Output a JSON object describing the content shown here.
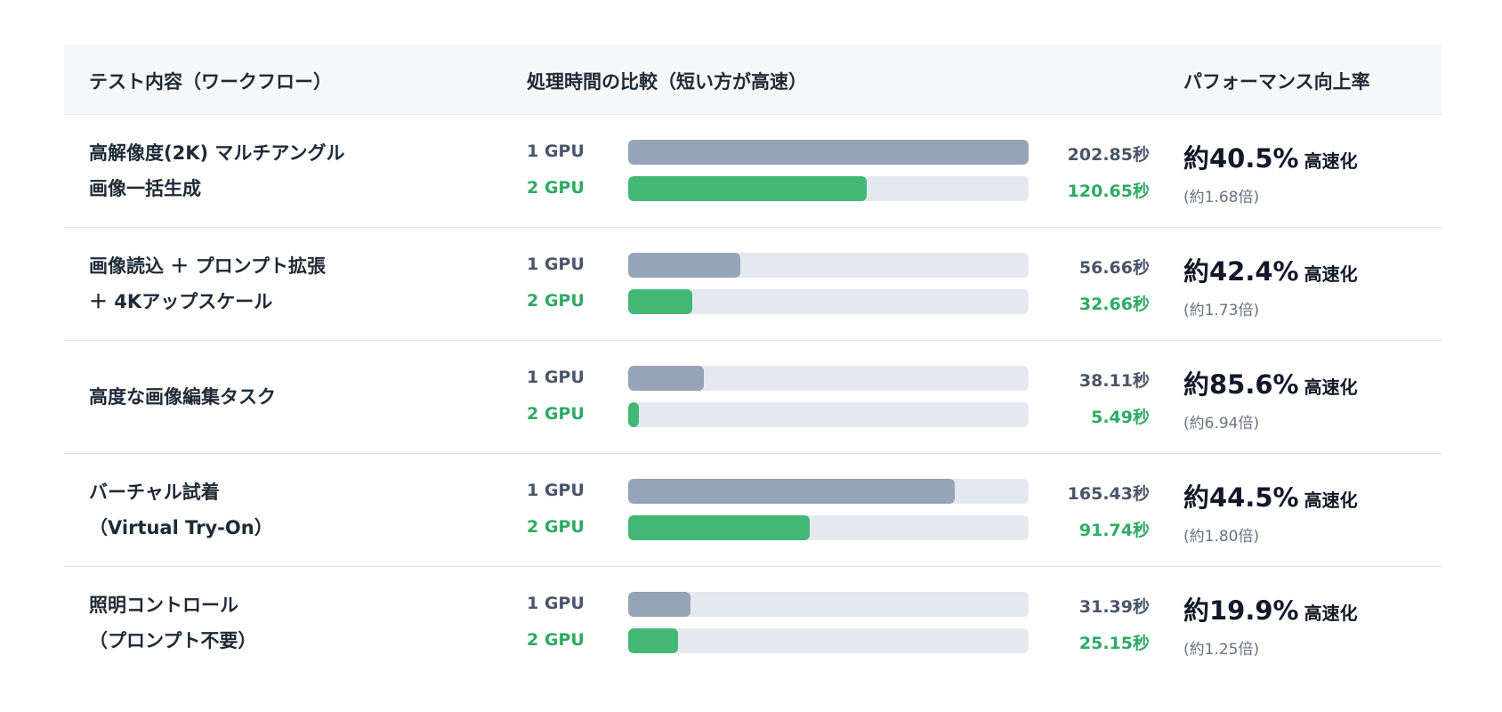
{
  "header": {
    "col_task": "テスト内容（ワークフロー）",
    "col_compare": "処理時間の比較（短い方が高速）",
    "col_perf": "パフォーマンス向上率"
  },
  "gpu_labels": {
    "one": "1 GPU",
    "two": "2 GPU"
  },
  "speedup_suffix": "高速化",
  "colors": {
    "one_gpu_bar": "#97a3b6",
    "two_gpu_bar": "#42b874",
    "two_gpu_text": "#2eaa63",
    "track": "#e4e9f0"
  },
  "chart_data": {
    "type": "bar",
    "orientation": "horizontal",
    "bar_scale_max": 202.85,
    "unit": "秒",
    "series": [
      {
        "name": "1 GPU",
        "values": [
          202.85,
          56.66,
          38.11,
          165.43,
          31.39
        ]
      },
      {
        "name": "2 GPU",
        "values": [
          120.65,
          32.66,
          5.49,
          91.74,
          25.15
        ]
      }
    ],
    "rows": [
      {
        "task_lines": [
          "高解像度(2K) マルチアングル",
          "画像一括生成"
        ],
        "gpu1": 202.85,
        "gpu2": 120.65,
        "gpu1_text": "202.85秒",
        "gpu2_text": "120.65秒",
        "pct": "約40.5%",
        "ratio": "(約1.68倍)"
      },
      {
        "task_lines": [
          "画像読込 ＋ プロンプト拡張",
          "＋ 4Kアップスケール"
        ],
        "gpu1": 56.66,
        "gpu2": 32.66,
        "gpu1_text": "56.66秒",
        "gpu2_text": "32.66秒",
        "pct": "約42.4%",
        "ratio": "(約1.73倍)"
      },
      {
        "task_lines": [
          "高度な画像編集タスク"
        ],
        "gpu1": 38.11,
        "gpu2": 5.49,
        "gpu1_text": "38.11秒",
        "gpu2_text": "5.49秒",
        "pct": "約85.6%",
        "ratio": "(約6.94倍)"
      },
      {
        "task_lines": [
          "バーチャル試着",
          "（Virtual Try-On）"
        ],
        "gpu1": 165.43,
        "gpu2": 91.74,
        "gpu1_text": "165.43秒",
        "gpu2_text": "91.74秒",
        "pct": "約44.5%",
        "ratio": "(約1.80倍)"
      },
      {
        "task_lines": [
          "照明コントロール",
          "（プロンプト不要）"
        ],
        "gpu1": 31.39,
        "gpu2": 25.15,
        "gpu1_text": "31.39秒",
        "gpu2_text": "25.15秒",
        "pct": "約19.9%",
        "ratio": "(約1.25倍)"
      }
    ]
  }
}
